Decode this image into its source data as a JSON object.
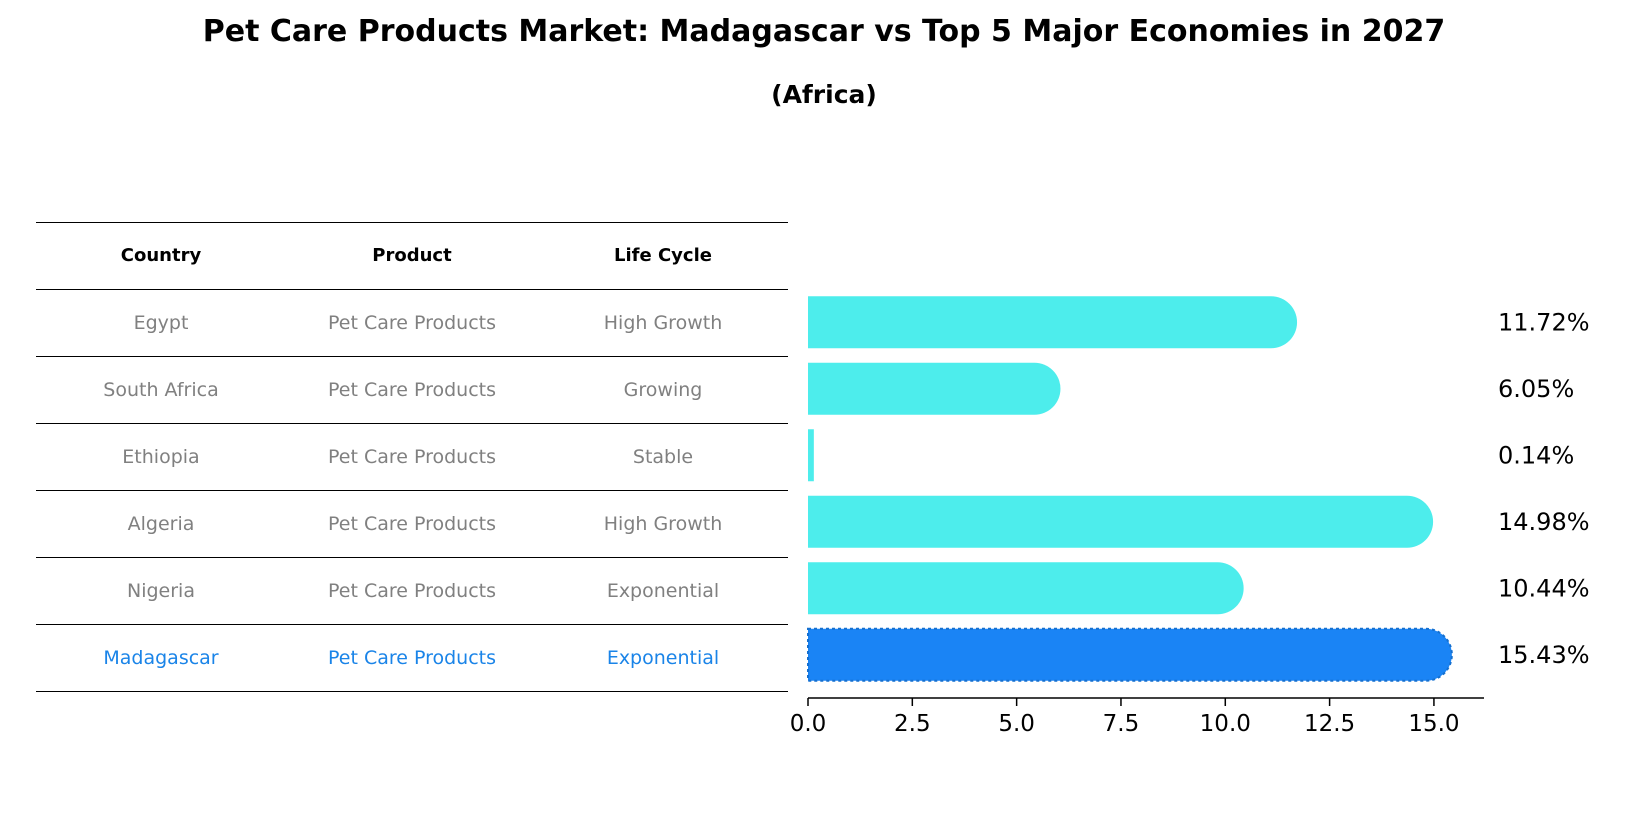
{
  "title": "Pet Care Products Market: Madagascar vs Top 5 Major Economies in 2027",
  "subtitle": "(Africa)",
  "table": {
    "headers": [
      "Country",
      "Product",
      "Life Cycle"
    ],
    "rows": [
      {
        "country": "Egypt",
        "product": "Pet Care Products",
        "life_cycle": "High Growth"
      },
      {
        "country": "South Africa",
        "product": "Pet Care Products",
        "life_cycle": "Growing"
      },
      {
        "country": "Ethiopia",
        "product": "Pet Care Products",
        "life_cycle": "Stable"
      },
      {
        "country": "Algeria",
        "product": "Pet Care Products",
        "life_cycle": "High Growth"
      },
      {
        "country": "Nigeria",
        "product": "Pet Care Products",
        "life_cycle": "Exponential"
      },
      {
        "country": "Madagascar",
        "product": "Pet Care Products",
        "life_cycle": "Exponential"
      }
    ]
  },
  "colors": {
    "bar": "#4dedec",
    "highlight_bar": "#1a84f5",
    "highlight_text": "#1a84e8",
    "row_text": "#808080"
  },
  "chart_data": {
    "type": "bar",
    "orientation": "horizontal",
    "categories": [
      "Egypt",
      "South Africa",
      "Ethiopia",
      "Algeria",
      "Nigeria",
      "Madagascar"
    ],
    "values": [
      11.72,
      6.05,
      0.14,
      14.98,
      10.44,
      15.43
    ],
    "value_labels": [
      "11.72%",
      "6.05%",
      "0.14%",
      "14.98%",
      "10.44%",
      "15.43%"
    ],
    "highlight": "Madagascar",
    "xlim": [
      0,
      16.2
    ],
    "xticks": [
      0.0,
      2.5,
      5.0,
      7.5,
      10.0,
      12.5,
      15.0
    ],
    "xtick_labels": [
      "0.0",
      "2.5",
      "5.0",
      "7.5",
      "10.0",
      "12.5",
      "15.0"
    ],
    "unit": "%"
  }
}
